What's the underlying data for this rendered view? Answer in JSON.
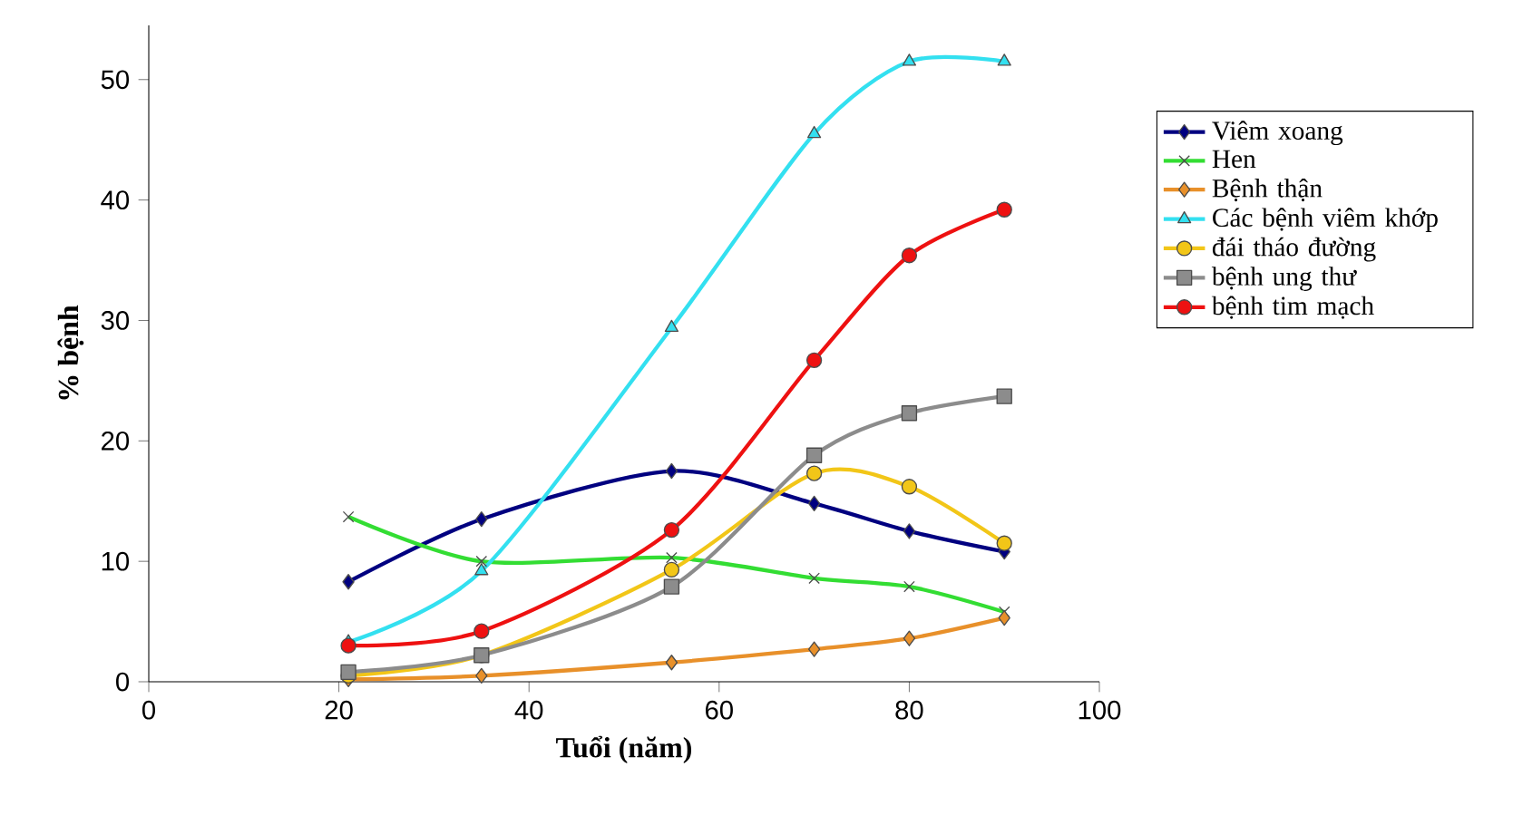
{
  "chart_data": {
    "type": "line",
    "xlabel": "Tuổi (năm)",
    "ylabel": "% bệnh",
    "x": [
      21,
      35,
      55,
      70,
      80,
      90
    ],
    "series": [
      {
        "name": "Viêm xoang",
        "color": "#000080",
        "marker": "diamond",
        "values": [
          8.3,
          13.5,
          17.5,
          14.8,
          12.5,
          10.8
        ]
      },
      {
        "name": "Hen",
        "color": "#33dd33",
        "marker": "cross",
        "values": [
          13.7,
          10.0,
          10.3,
          8.6,
          7.9,
          5.8
        ]
      },
      {
        "name": "Bệnh thận",
        "color": "#e8902a",
        "marker": "diamond",
        "values": [
          0.2,
          0.5,
          1.6,
          2.7,
          3.6,
          5.3
        ]
      },
      {
        "name": "Các bệnh viêm khớp",
        "color": "#33e0f0",
        "marker": "triangle",
        "values": [
          3.3,
          9.2,
          29.4,
          45.5,
          51.5,
          51.5
        ]
      },
      {
        "name": "đái tháo đường",
        "color": "#f2c618",
        "marker": "circle",
        "values": [
          0.5,
          2.2,
          9.3,
          17.3,
          16.2,
          11.5
        ]
      },
      {
        "name": "bệnh ung thư",
        "color": "#8c8c8c",
        "marker": "square",
        "values": [
          0.8,
          2.2,
          7.9,
          18.8,
          22.3,
          23.7
        ]
      },
      {
        "name": "bệnh tim mạch",
        "color": "#ee1111",
        "marker": "circle",
        "values": [
          3.0,
          4.2,
          12.6,
          26.7,
          35.4,
          39.2
        ]
      }
    ],
    "xlim": [
      0,
      100
    ],
    "xticks": [
      0,
      20,
      40,
      60,
      80,
      100
    ],
    "ylim": [
      0,
      54.5
    ],
    "yticks": [
      0,
      10,
      20,
      30,
      40,
      50
    ],
    "legend": "right",
    "grid": false
  }
}
